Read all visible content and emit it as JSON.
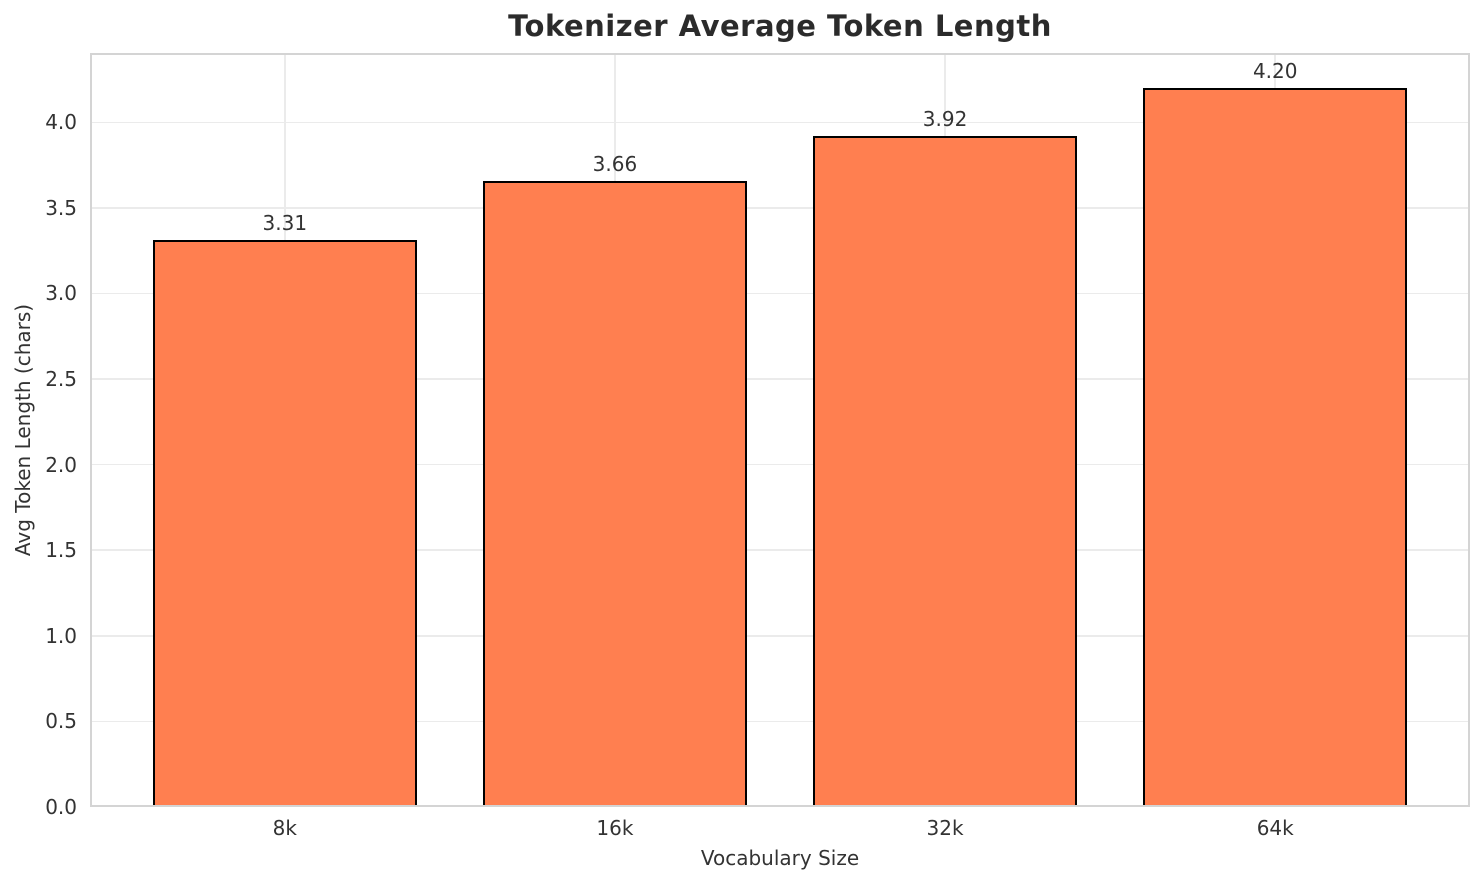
{
  "figure": {
    "background": "#ffffff"
  },
  "chart_data": {
    "type": "bar",
    "title": "Tokenizer Average Token Length",
    "xlabel": "Vocabulary Size",
    "ylabel": "Avg Token Length (chars)",
    "categories": [
      "8k",
      "16k",
      "32k",
      "64k"
    ],
    "values": [
      3.31,
      3.66,
      3.92,
      4.2
    ],
    "bar_value_labels": [
      "3.31",
      "3.66",
      "3.92",
      "4.20"
    ],
    "ylim": [
      0,
      4.405
    ],
    "ytick_labels": [
      "0.0",
      "0.5",
      "1.0",
      "1.5",
      "2.0",
      "2.5",
      "3.0",
      "3.5",
      "4.0"
    ],
    "grid": true,
    "legend_position": "none",
    "colors": {
      "bar_fill": "#FF7F50",
      "bar_edge": "#000000",
      "grid": "#ebebeb",
      "spine": "#d4d4d4",
      "tick_text": "#333333",
      "title_text": "#2b2b2b"
    }
  }
}
